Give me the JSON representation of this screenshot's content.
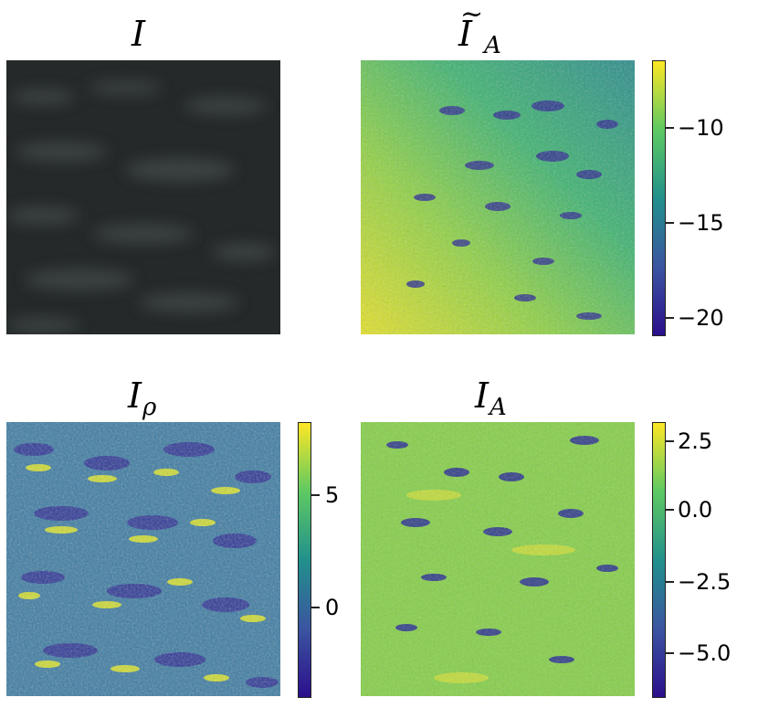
{
  "panels": [
    {
      "title": "I",
      "subscript": "",
      "tilde": false,
      "type": "gray",
      "colorbar": null
    },
    {
      "title": "I",
      "subscript": "A",
      "tilde": true,
      "type": "viridis-trend",
      "colorbar": {
        "ticks": [
          "−10",
          "−15",
          "−20"
        ],
        "min": -21,
        "max": -6.5
      }
    },
    {
      "title": "I",
      "subscript": "ρ",
      "tilde": false,
      "type": "viridis-noise",
      "colorbar": {
        "ticks": [
          "5",
          "0"
        ],
        "min": -4,
        "max": 8
      }
    },
    {
      "title": "I",
      "subscript": "A",
      "tilde": false,
      "type": "viridis-flat",
      "colorbar": {
        "ticks": [
          "2.5",
          "0.0",
          "−2.5",
          "−5.0"
        ],
        "min": -6.5,
        "max": 3.0
      }
    }
  ],
  "colors": {
    "cmap_low": "#2b0f8c",
    "cmap_mid": "#21908c",
    "cmap_high": "#fde725"
  }
}
